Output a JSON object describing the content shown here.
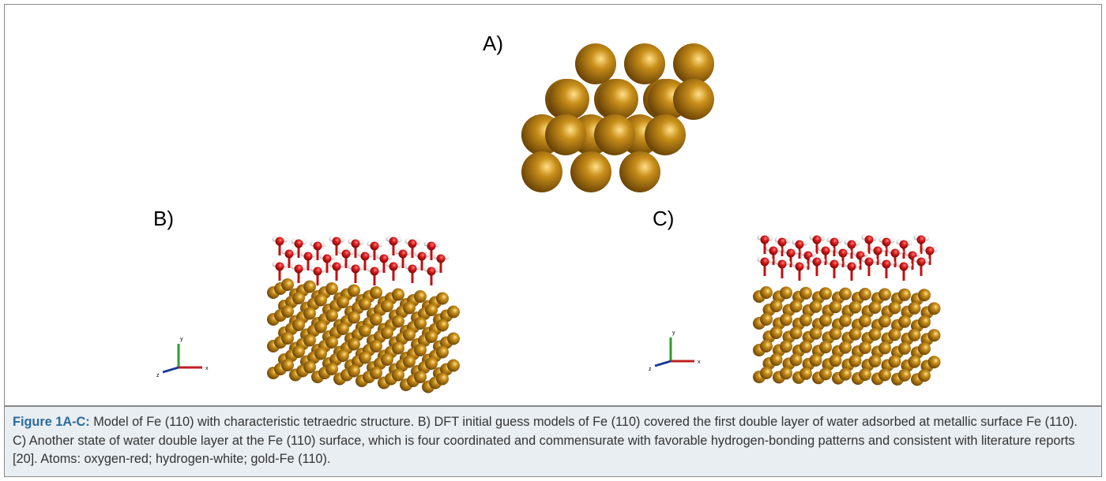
{
  "figure": {
    "panels": [
      {
        "label": "A)"
      },
      {
        "label": "B)",
        "axes": [
          "y",
          "z",
          "x"
        ]
      },
      {
        "label": "C)",
        "axes": [
          "y",
          "z",
          "x"
        ]
      }
    ]
  },
  "caption": {
    "label": "Figure 1A-C:",
    "text": "Model of Fe (110) with characteristic tetraedric structure. B) DFT initial guess models of Fe (110) covered the first double layer of water adsorbed at metallic surface Fe (110). C) Another state of water double layer at the Fe (110) surface, which is four coordinated and commensurate with favorable hydrogen-bonding patterns and consistent with literature reports [20]. Atoms: oxygen-red; hydrogen-white; gold-Fe (110)."
  }
}
